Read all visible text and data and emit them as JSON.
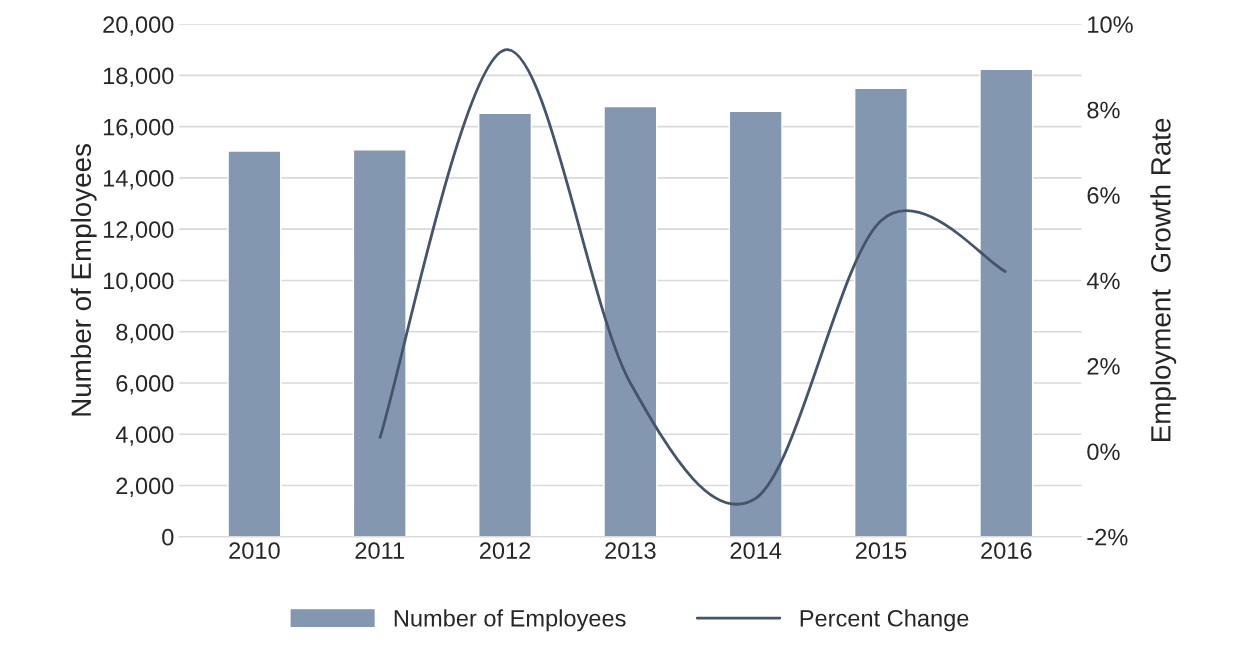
{
  "chart_data": {
    "type": "bar",
    "categories": [
      "2010",
      "2011",
      "2012",
      "2013",
      "2014",
      "2015",
      "2016"
    ],
    "series": [
      {
        "name": "Number of Employees",
        "color": "#8497b0",
        "values": [
          15050,
          15100,
          16520,
          16790,
          16600,
          17500,
          18240
        ]
      },
      {
        "name": "Percent Change",
        "type": "line",
        "axis": "y2",
        "color": "#44546a",
        "line_style": "solid",
        "values": [
          null,
          0.3,
          9.4,
          1.6,
          -1.1,
          5.4,
          4.2
        ]
      }
    ],
    "ylabel": "Number of Employees",
    "y2label": "Employment  Growth Rate",
    "ylim": [
      0,
      20000
    ],
    "yticks": [
      {
        "value": 0,
        "label": "0"
      },
      {
        "value": 2000,
        "label": "2,000"
      },
      {
        "value": 4000,
        "label": "4,000"
      },
      {
        "value": 6000,
        "label": "6,000"
      },
      {
        "value": 8000,
        "label": "8,000"
      },
      {
        "value": 10000,
        "label": "10,000"
      },
      {
        "value": 12000,
        "label": "12,000"
      },
      {
        "value": 14000,
        "label": "14,000"
      },
      {
        "value": 16000,
        "label": "16,000"
      },
      {
        "value": 18000,
        "label": "18,000"
      },
      {
        "value": 20000,
        "label": "20,000"
      }
    ],
    "y2lim": [
      -2,
      10
    ],
    "y2ticks": [
      {
        "value": -2,
        "label": "-2%"
      },
      {
        "value": 0,
        "label": "0%"
      },
      {
        "value": 2,
        "label": "2%"
      },
      {
        "value": 4,
        "label": "4%"
      },
      {
        "value": 6,
        "label": "6%"
      },
      {
        "value": 8,
        "label": "8%"
      },
      {
        "value": 10,
        "label": "10%"
      }
    ],
    "grid": "y",
    "legend": "bottom",
    "marker": "none"
  }
}
